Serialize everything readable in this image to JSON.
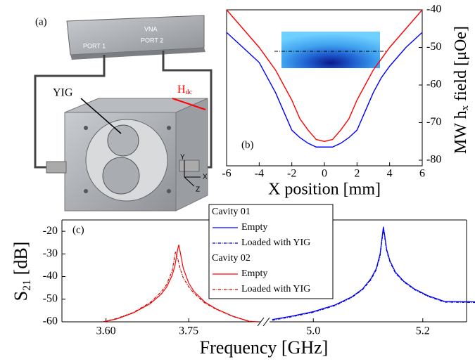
{
  "illustration": {
    "label": "(a)",
    "vna": "VNA",
    "port1": "PORT 1",
    "port2": "PORT 2",
    "yig": "YIG",
    "field": [
      "H",
      "dc"
    ],
    "axes": [
      "Y",
      "X",
      "Z"
    ]
  },
  "chart_data": [
    {
      "type": "line",
      "label": "(b)",
      "xlabel": "X position [mm]",
      "ylabel": [
        "MW h",
        "x",
        " field [μOe]"
      ],
      "xlim": [
        -6,
        6
      ],
      "ylim": [
        -81.5,
        -40
      ],
      "xticks": [
        -6,
        -4,
        -2,
        0,
        2,
        4,
        6
      ],
      "yticks": [
        -80,
        -70,
        -60,
        -50,
        -40
      ],
      "yaxis_side": "right",
      "x": [
        -6,
        -5,
        -4,
        -3.5,
        -3,
        -2.5,
        -2,
        -1.5,
        -1,
        -0.5,
        0,
        0.5,
        1,
        1.5,
        2,
        2.5,
        3,
        3.5,
        4,
        5,
        6
      ],
      "series": [
        {
          "color": "#0000ff",
          "values": [
            -46,
            -50,
            -54,
            -58,
            -62,
            -67,
            -72,
            -74,
            -75.5,
            -76.5,
            -76.5,
            -76.5,
            -75.5,
            -74,
            -72,
            -67,
            -62,
            -58,
            -55,
            -50,
            -46
          ]
        },
        {
          "color": "#ff0000",
          "values": [
            -40,
            -45,
            -50,
            -53,
            -56,
            -60,
            -64,
            -69,
            -72,
            -74.5,
            -75,
            -74.5,
            -72,
            -69,
            -64,
            -60,
            -56,
            -53,
            -50,
            -45,
            -40
          ]
        }
      ]
    },
    {
      "type": "line",
      "label": "(c)",
      "xlabel": "Frequency [GHz]",
      "ylabel": [
        "S",
        "21",
        " [dB]"
      ],
      "xlim_segments": [
        [
          3.52,
          3.88
        ],
        [
          4.92,
          5.28
        ]
      ],
      "xticks": [
        {
          "value": 3.6,
          "label": "3.60"
        },
        3.75,
        {
          "value": 5,
          "label": "5.0"
        },
        5.2
      ],
      "ylim": [
        -60,
        -15
      ],
      "yticks": [
        -60,
        -50,
        -40,
        -30,
        -20
      ],
      "legend_groups": [
        "Cavity 01",
        "Cavity 02"
      ],
      "series": [
        {
          "name": "Empty",
          "group": 0,
          "color": "#0000ff",
          "dash": false,
          "x": [
            4.925,
            4.96,
            5.0,
            5.04,
            5.07,
            5.09,
            5.105,
            5.115,
            5.122,
            5.126,
            5.128,
            5.13,
            5.134,
            5.14,
            5.15,
            5.165,
            5.185,
            5.21,
            5.24,
            5.283
          ],
          "values": [
            -59,
            -57.5,
            -55.5,
            -52.5,
            -49,
            -45.5,
            -41,
            -36.5,
            -30,
            -22,
            -18,
            -21,
            -28,
            -33,
            -38,
            -42,
            -45.5,
            -48.5,
            -51,
            -54
          ]
        },
        {
          "name": "Loaded with YIG",
          "group": 0,
          "color": "#0000cc",
          "dash": true,
          "x": [
            4.925,
            4.96,
            5.0,
            5.04,
            5.07,
            5.09,
            5.105,
            5.115,
            5.122,
            5.126,
            5.128,
            5.13,
            5.134,
            5.14,
            5.15,
            5.165,
            5.185,
            5.21,
            5.24,
            5.283
          ],
          "values": [
            -59.3,
            -57.8,
            -55.8,
            -52.8,
            -49.3,
            -45.8,
            -41.5,
            -37,
            -31,
            -23,
            -19.5,
            -22,
            -28.8,
            -33.5,
            -38.5,
            -42.3,
            -45.8,
            -48.8,
            -51.3,
            -54.3
          ]
        },
        {
          "name": "Empty",
          "group": 1,
          "color": "#ff0000",
          "dash": false,
          "x": [
            3.595,
            3.62,
            3.65,
            3.68,
            3.7,
            3.71,
            3.72,
            3.725,
            3.73,
            3.732,
            3.735,
            3.74,
            3.75,
            3.76,
            3.78,
            3.8,
            3.83,
            3.86,
            3.875
          ],
          "values": [
            -60,
            -58.7,
            -56,
            -52,
            -47.8,
            -44.6,
            -39.5,
            -35.2,
            -28,
            -26,
            -29.7,
            -36.2,
            -42.9,
            -46.7,
            -51.4,
            -54.3,
            -57.5,
            -59.8,
            -60
          ]
        },
        {
          "name": "Loaded with YIG",
          "group": 1,
          "color": "#cc0000",
          "dash": true,
          "x": [
            3.595,
            3.62,
            3.65,
            3.68,
            3.7,
            3.71,
            3.72,
            3.725,
            3.726,
            3.73,
            3.735,
            3.74,
            3.75,
            3.76,
            3.78,
            3.8,
            3.83,
            3.86,
            3.875
          ],
          "values": [
            -60,
            -58.5,
            -55.8,
            -51.5,
            -46.8,
            -43.5,
            -37.5,
            -30.5,
            -29,
            -32,
            -37,
            -40.5,
            -44.5,
            -47.5,
            -51.8,
            -54.5,
            -57.6,
            -59.8,
            -60
          ]
        }
      ]
    }
  ]
}
